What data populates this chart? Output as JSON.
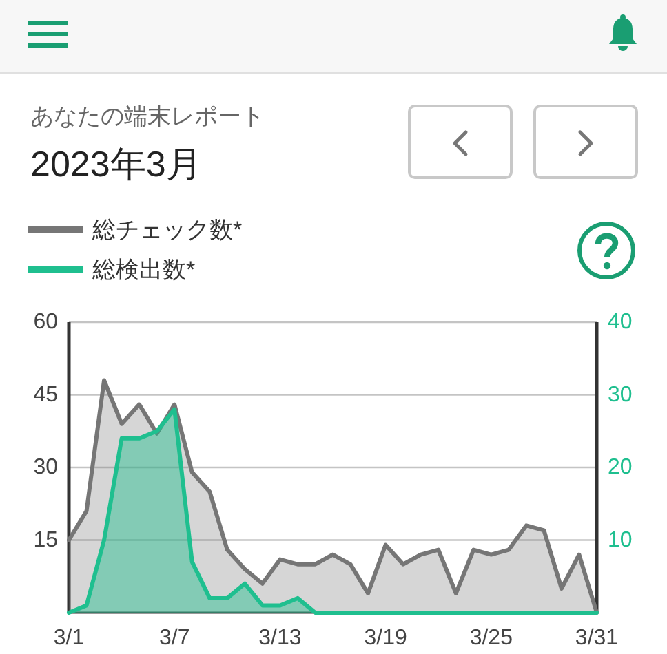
{
  "chart_data": {
    "type": "area",
    "title": "あなたの端末レポート",
    "subtitle": "2023年3月",
    "categories": [
      "3/1",
      null,
      null,
      null,
      null,
      null,
      "3/7",
      null,
      null,
      null,
      null,
      null,
      "3/13",
      null,
      null,
      null,
      null,
      null,
      "3/19",
      null,
      null,
      null,
      null,
      null,
      "3/25",
      null,
      null,
      null,
      null,
      null,
      "3/31"
    ],
    "series": [
      {
        "name": "総チェック数*",
        "color": "#767676",
        "values": [
          15,
          21,
          48,
          39,
          43,
          37,
          43,
          29,
          25,
          13,
          9,
          6,
          11,
          10,
          10,
          12,
          10,
          4,
          14,
          10,
          12,
          13,
          4,
          13,
          12,
          13,
          18,
          17,
          5,
          12,
          0
        ]
      },
      {
        "name": "総検出数*",
        "color": "#1fbf8f",
        "axis": "y2",
        "values": [
          0,
          1,
          10,
          24,
          24,
          25,
          28,
          7,
          2,
          2,
          4,
          1,
          1,
          2,
          0,
          0,
          0,
          0,
          0,
          0,
          0,
          0,
          0,
          0,
          0,
          0,
          0,
          0,
          0,
          0,
          0
        ]
      }
    ],
    "ylim": [
      0,
      60
    ],
    "yticks": [
      15,
      30,
      45,
      60
    ],
    "y2lim": [
      0,
      40
    ],
    "y2ticks": [
      10,
      20,
      30,
      40
    ],
    "grid": "y",
    "legend": "top left"
  }
}
